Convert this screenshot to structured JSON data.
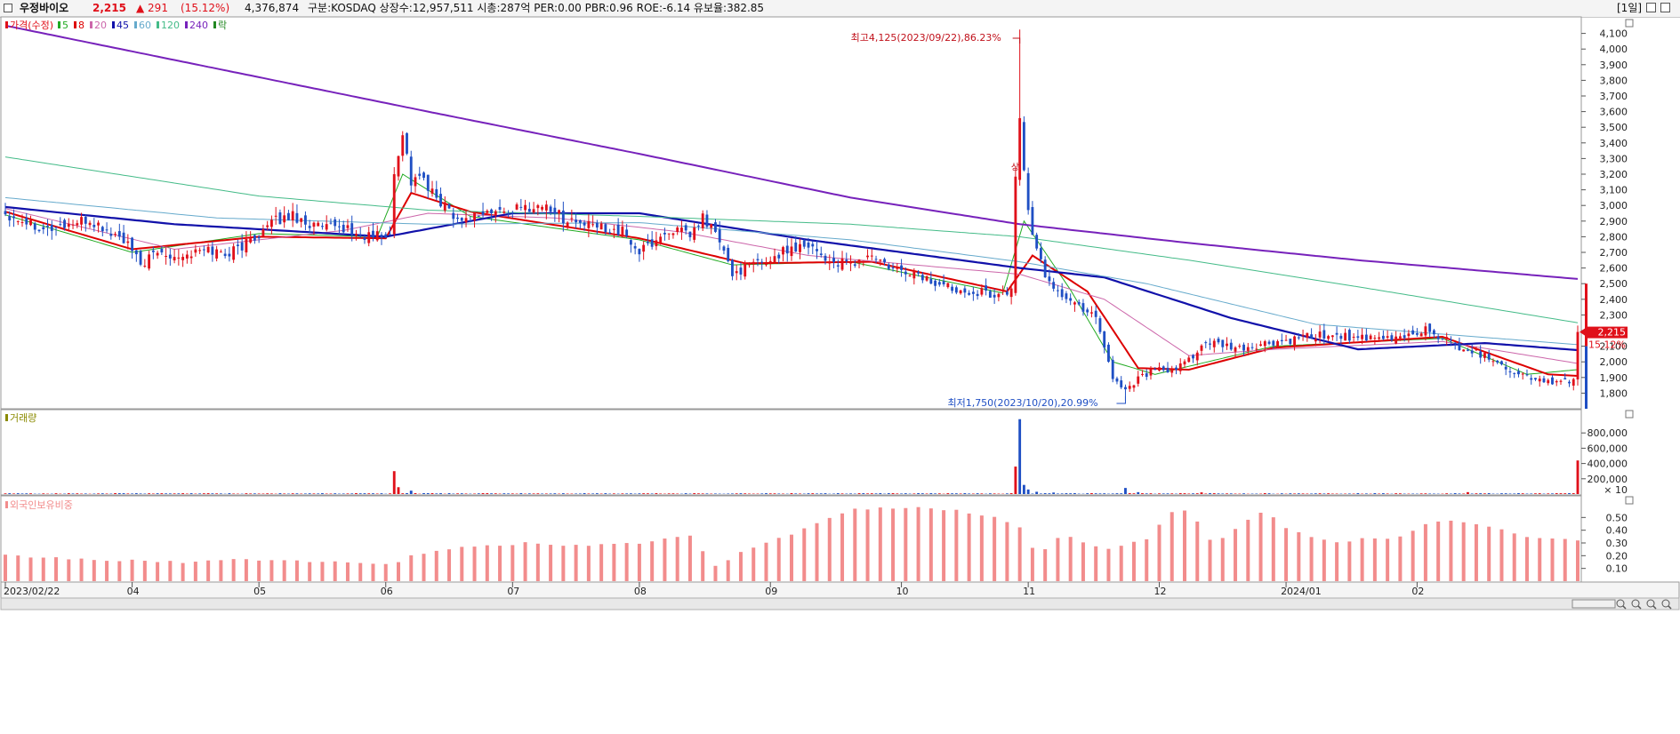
{
  "header": {
    "stock_name": "우정바이오",
    "price": "2,215",
    "change": "▲ 291",
    "change_pct": "(15.12%)",
    "volume": "4,376,874",
    "info": "구분:KOSDAQ  상장수:12,957,511  시총:287억  PER:0.00  PBR:0.96  ROE:-6.14  유보율:382.85",
    "period": "[1일]"
  },
  "colors": {
    "up": "#e0101a",
    "down": "#1f4fc4",
    "ma5": "#22aa22",
    "ma8": "#dd0000",
    "ma20": "#cc66aa",
    "ma45": "#1111aa",
    "ma60": "#66aacc",
    "ma120": "#44bb88",
    "ma240": "#7722bb",
    "foreign": "#f28c8c"
  },
  "chart_data": [
    {
      "type": "candlestick",
      "legend": [
        {
          "label": "가격(수정)",
          "color": "#e0101a"
        },
        {
          "label": "5",
          "color": "#22aa22"
        },
        {
          "label": "8",
          "color": "#dd0000"
        },
        {
          "label": "20",
          "color": "#cc66aa"
        },
        {
          "label": "45",
          "color": "#1111aa"
        },
        {
          "label": "60",
          "color": "#66aacc"
        },
        {
          "label": "120",
          "color": "#44bb88"
        },
        {
          "label": "240",
          "color": "#7722bb"
        },
        {
          "label": "락",
          "color": "#228822"
        }
      ],
      "ylim": [
        1700,
        4200
      ],
      "yticks": [
        1800,
        1900,
        2000,
        2100,
        2200,
        2300,
        2400,
        2500,
        2600,
        2700,
        2800,
        2900,
        3000,
        3100,
        3200,
        3300,
        3400,
        3500,
        3600,
        3700,
        3800,
        3900,
        4000,
        4100
      ],
      "ytick_labels": [
        "1,800",
        "1,900",
        "2,000",
        "2,100",
        "2,200",
        "2,300",
        "2,400",
        "2,500",
        "2,600",
        "2,700",
        "2,800",
        "2,900",
        "3,000",
        "3,100",
        "3,200",
        "3,300",
        "3,400",
        "3,500",
        "3,600",
        "3,700",
        "3,800",
        "3,900",
        "4,000",
        "4,100"
      ],
      "last_price_label": "2,215",
      "last_pct_label": "15.12%",
      "annotations": {
        "high": "최고4,125(2023/09/22),86.23%",
        "low": "최저1,750(2023/10/20),20.99%",
        "limit_up": "상"
      },
      "high_value": 4125,
      "low_value": 1750,
      "close_path": [
        [
          0,
          2950
        ],
        [
          5,
          2900
        ],
        [
          10,
          2850
        ],
        [
          15,
          2880
        ],
        [
          20,
          2900
        ],
        [
          25,
          2820
        ],
        [
          28,
          2780
        ],
        [
          32,
          2620
        ],
        [
          36,
          2700
        ],
        [
          42,
          2680
        ],
        [
          48,
          2720
        ],
        [
          52,
          2690
        ],
        [
          56,
          2740
        ],
        [
          60,
          2820
        ],
        [
          64,
          2900
        ],
        [
          68,
          2940
        ],
        [
          72,
          2880
        ],
        [
          76,
          2850
        ],
        [
          80,
          2860
        ],
        [
          84,
          2800
        ],
        [
          88,
          2810
        ],
        [
          91,
          2800
        ],
        [
          92,
          3200
        ],
        [
          94,
          3480
        ],
        [
          96,
          3150
        ],
        [
          98,
          3200
        ],
        [
          100,
          3100
        ],
        [
          104,
          3000
        ],
        [
          108,
          2900
        ],
        [
          112,
          2950
        ],
        [
          118,
          2960
        ],
        [
          124,
          2990
        ],
        [
          128,
          3000
        ],
        [
          132,
          2920
        ],
        [
          138,
          2870
        ],
        [
          142,
          2860
        ],
        [
          146,
          2830
        ],
        [
          150,
          2700
        ],
        [
          154,
          2780
        ],
        [
          158,
          2850
        ],
        [
          162,
          2800
        ],
        [
          165,
          2920
        ],
        [
          168,
          2830
        ],
        [
          172,
          2560
        ],
        [
          176,
          2620
        ],
        [
          180,
          2640
        ],
        [
          185,
          2720
        ],
        [
          190,
          2760
        ],
        [
          195,
          2640
        ],
        [
          200,
          2620
        ],
        [
          205,
          2680
        ],
        [
          210,
          2580
        ],
        [
          215,
          2570
        ],
        [
          220,
          2500
        ],
        [
          225,
          2470
        ],
        [
          230,
          2450
        ],
        [
          234,
          2430
        ],
        [
          238,
          2450
        ],
        [
          239,
          3180
        ],
        [
          240,
          3560
        ],
        [
          242,
          2950
        ],
        [
          244,
          2700
        ],
        [
          246,
          2560
        ],
        [
          248,
          2480
        ],
        [
          252,
          2380
        ],
        [
          256,
          2330
        ],
        [
          258,
          2300
        ],
        [
          262,
          1900
        ],
        [
          265,
          1820
        ],
        [
          268,
          1900
        ],
        [
          272,
          1950
        ],
        [
          276,
          1930
        ],
        [
          280,
          2020
        ],
        [
          284,
          2120
        ],
        [
          288,
          2100
        ],
        [
          292,
          2080
        ],
        [
          296,
          2100
        ],
        [
          300,
          2120
        ],
        [
          304,
          2130
        ],
        [
          308,
          2160
        ],
        [
          312,
          2170
        ],
        [
          316,
          2170
        ],
        [
          320,
          2150
        ],
        [
          324,
          2140
        ],
        [
          328,
          2150
        ],
        [
          332,
          2170
        ],
        [
          336,
          2210
        ],
        [
          340,
          2150
        ],
        [
          344,
          2100
        ],
        [
          348,
          2060
        ],
        [
          352,
          2020
        ],
        [
          356,
          1950
        ],
        [
          360,
          1900
        ],
        [
          364,
          1880
        ],
        [
          368,
          1860
        ],
        [
          371,
          1890
        ],
        [
          372,
          2215
        ]
      ],
      "moving_averages": {
        "ma5": [
          [
            0,
            2940
          ],
          [
            30,
            2700
          ],
          [
            60,
            2820
          ],
          [
            88,
            2800
          ],
          [
            94,
            3200
          ],
          [
            110,
            2930
          ],
          [
            150,
            2780
          ],
          [
            172,
            2620
          ],
          [
            200,
            2640
          ],
          [
            236,
            2440
          ],
          [
            241,
            2900
          ],
          [
            252,
            2460
          ],
          [
            262,
            2000
          ],
          [
            272,
            1920
          ],
          [
            300,
            2100
          ],
          [
            340,
            2150
          ],
          [
            360,
            1920
          ],
          [
            372,
            1950
          ]
        ],
        "ma8": [
          [
            0,
            2960
          ],
          [
            30,
            2720
          ],
          [
            60,
            2800
          ],
          [
            90,
            2790
          ],
          [
            96,
            3080
          ],
          [
            110,
            2960
          ],
          [
            150,
            2790
          ],
          [
            175,
            2630
          ],
          [
            205,
            2640
          ],
          [
            237,
            2450
          ],
          [
            243,
            2680
          ],
          [
            256,
            2450
          ],
          [
            268,
            1960
          ],
          [
            280,
            1950
          ],
          [
            300,
            2090
          ],
          [
            340,
            2160
          ],
          [
            365,
            1920
          ],
          [
            372,
            1910
          ]
        ],
        "ma20": [
          [
            0,
            2980
          ],
          [
            40,
            2720
          ],
          [
            80,
            2840
          ],
          [
            100,
            2950
          ],
          [
            130,
            2920
          ],
          [
            160,
            2830
          ],
          [
            190,
            2680
          ],
          [
            240,
            2560
          ],
          [
            260,
            2400
          ],
          [
            280,
            2040
          ],
          [
            300,
            2080
          ],
          [
            340,
            2130
          ],
          [
            372,
            1990
          ]
        ],
        "ma45": [
          [
            0,
            2990
          ],
          [
            40,
            2880
          ],
          [
            90,
            2800
          ],
          [
            120,
            2950
          ],
          [
            150,
            2950
          ],
          [
            190,
            2780
          ],
          [
            240,
            2600
          ],
          [
            260,
            2540
          ],
          [
            290,
            2280
          ],
          [
            320,
            2080
          ],
          [
            350,
            2120
          ],
          [
            372,
            2075
          ]
        ],
        "ma60": [
          [
            0,
            3050
          ],
          [
            50,
            2920
          ],
          [
            100,
            2880
          ],
          [
            150,
            2890
          ],
          [
            200,
            2780
          ],
          [
            240,
            2640
          ],
          [
            270,
            2500
          ],
          [
            310,
            2240
          ],
          [
            372,
            2110
          ]
        ],
        "ma120": [
          [
            0,
            3310
          ],
          [
            60,
            3060
          ],
          [
            100,
            2970
          ],
          [
            150,
            2930
          ],
          [
            200,
            2880
          ],
          [
            240,
            2800
          ],
          [
            280,
            2650
          ],
          [
            320,
            2480
          ],
          [
            372,
            2250
          ]
        ],
        "ma240": [
          [
            0,
            4150
          ],
          [
            60,
            3820
          ],
          [
            100,
            3600
          ],
          [
            150,
            3330
          ],
          [
            200,
            3050
          ],
          [
            240,
            2880
          ],
          [
            280,
            2760
          ],
          [
            320,
            2650
          ],
          [
            372,
            2530
          ]
        ]
      }
    },
    {
      "type": "bar",
      "title": "거래량",
      "ylim": [
        0,
        1000000
      ],
      "yticks": [
        200000,
        400000,
        600000,
        800000
      ],
      "ytick_labels": [
        "200,000",
        "400,000",
        "600,000",
        "800,000"
      ],
      "unit_label": "× 10",
      "spikes": [
        {
          "x": 92,
          "value": 300000,
          "up": true
        },
        {
          "x": 93,
          "value": 90000,
          "up": true
        },
        {
          "x": 96,
          "value": 45000,
          "up": false
        },
        {
          "x": 239,
          "value": 360000,
          "up": true
        },
        {
          "x": 240,
          "value": 980000,
          "up": false
        },
        {
          "x": 241,
          "value": 120000,
          "up": false
        },
        {
          "x": 242,
          "value": 60000,
          "up": false
        },
        {
          "x": 244,
          "value": 30000,
          "up": false
        },
        {
          "x": 248,
          "value": 20000,
          "up": false
        },
        {
          "x": 265,
          "value": 80000,
          "up": false
        },
        {
          "x": 268,
          "value": 25000,
          "up": false
        },
        {
          "x": 283,
          "value": 22000,
          "up": true
        },
        {
          "x": 346,
          "value": 25000,
          "up": true
        },
        {
          "x": 372,
          "value": 440000,
          "up": true
        }
      ],
      "baseline_value": 8000
    },
    {
      "type": "bar",
      "title": "외국인보유비중",
      "ylim": [
        0,
        0.6
      ],
      "yticks": [
        0.1,
        0.2,
        0.3,
        0.4,
        0.5
      ],
      "ytick_labels": [
        "0.10",
        "0.20",
        "0.30",
        "0.40",
        "0.50"
      ],
      "profile": [
        [
          0,
          0.2
        ],
        [
          20,
          0.17
        ],
        [
          40,
          0.15
        ],
        [
          60,
          0.17
        ],
        [
          80,
          0.15
        ],
        [
          92,
          0.12
        ],
        [
          96,
          0.21
        ],
        [
          104,
          0.25
        ],
        [
          112,
          0.27
        ],
        [
          124,
          0.3
        ],
        [
          136,
          0.28
        ],
        [
          150,
          0.3
        ],
        [
          162,
          0.35
        ],
        [
          168,
          0.12
        ],
        [
          176,
          0.26
        ],
        [
          184,
          0.34
        ],
        [
          192,
          0.45
        ],
        [
          200,
          0.57
        ],
        [
          210,
          0.57
        ],
        [
          218,
          0.58
        ],
        [
          226,
          0.55
        ],
        [
          234,
          0.5
        ],
        [
          240,
          0.42
        ],
        [
          244,
          0.2
        ],
        [
          250,
          0.37
        ],
        [
          256,
          0.3
        ],
        [
          262,
          0.25
        ],
        [
          270,
          0.33
        ],
        [
          276,
          0.54
        ],
        [
          280,
          0.56
        ],
        [
          286,
          0.28
        ],
        [
          292,
          0.44
        ],
        [
          298,
          0.55
        ],
        [
          304,
          0.4
        ],
        [
          310,
          0.33
        ],
        [
          316,
          0.3
        ],
        [
          322,
          0.35
        ],
        [
          328,
          0.33
        ],
        [
          334,
          0.42
        ],
        [
          340,
          0.48
        ],
        [
          346,
          0.45
        ],
        [
          352,
          0.42
        ],
        [
          358,
          0.36
        ],
        [
          364,
          0.34
        ],
        [
          372,
          0.32
        ]
      ]
    }
  ],
  "x_axis": {
    "n_days": 373,
    "labels": [
      {
        "day": 0,
        "text": "2023/02/22"
      },
      {
        "day": 30,
        "text": "04"
      },
      {
        "day": 60,
        "text": "05"
      },
      {
        "day": 90,
        "text": "06"
      },
      {
        "day": 120,
        "text": "07"
      },
      {
        "day": 150,
        "text": "08"
      },
      {
        "day": 181,
        "text": "09"
      },
      {
        "day": 212,
        "text": "10"
      },
      {
        "day": 242,
        "text": "11"
      },
      {
        "day": 273,
        "text": "12"
      },
      {
        "day": 303,
        "text": "2024/01"
      },
      {
        "day": 334,
        "text": "02"
      }
    ]
  }
}
